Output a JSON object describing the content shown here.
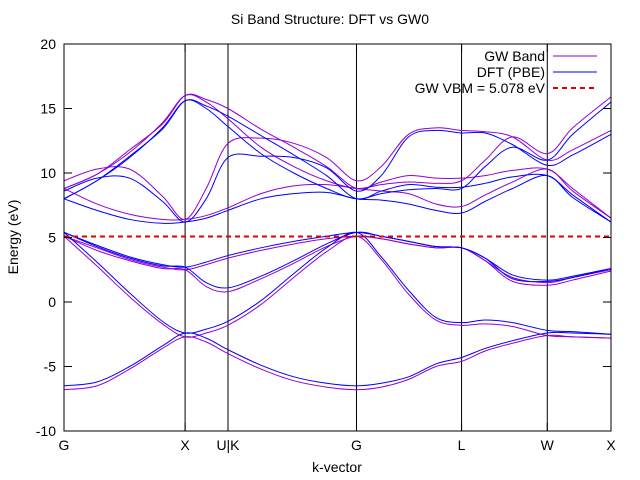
{
  "chart_data": {
    "type": "line",
    "title": "Si Band Structure: DFT vs GW0",
    "xlabel": "k-vector",
    "ylabel": "Energy (eV)",
    "xlim": [
      0,
      1
    ],
    "ylim": [
      -10,
      20
    ],
    "y_ticks": [
      -10,
      -5,
      0,
      5,
      10,
      15,
      20
    ],
    "k_points": [
      {
        "label": "G",
        "x": 0.0
      },
      {
        "label": "X",
        "x": 0.2214
      },
      {
        "label": "U|K",
        "x": 0.2998
      },
      {
        "label": "G",
        "x": 0.5347
      },
      {
        "label": "L",
        "x": 0.7268
      },
      {
        "label": "W",
        "x": 0.8835
      },
      {
        "label": "X",
        "x": 1.0
      }
    ],
    "legend_position": "top-right",
    "legend": [
      {
        "label": "GW Band",
        "color": "#9400d3",
        "dash": "solid"
      },
      {
        "label": "DFT (PBE)",
        "color": "#0000ff",
        "dash": "solid"
      },
      {
        "label": "GW VBM = 5.078 eV",
        "color": "#dd0000",
        "dash": "dashed"
      }
    ],
    "reference_line": {
      "y": 5.078,
      "color": "#dd0000"
    },
    "series": [
      {
        "group": "GW Band",
        "color": "#9400d3",
        "x": [
          0,
          0.06,
          0.12,
          0.18,
          0.2214,
          0.26,
          0.2998,
          0.36,
          0.42,
          0.48,
          0.5347,
          0.58,
          0.63,
          0.68,
          0.7268,
          0.77,
          0.82,
          0.8835,
          0.93,
          1.0
        ],
        "bands": [
          [
            -6.8,
            -6.5,
            -5.2,
            -3.6,
            -2.7,
            -3.1,
            -4.0,
            -5.2,
            -6.1,
            -6.6,
            -6.8,
            -6.6,
            -6.0,
            -5.0,
            -4.6,
            -3.8,
            -3.2,
            -2.6,
            -2.7,
            -2.8
          ],
          [
            5.1,
            2.8,
            0.4,
            -1.7,
            -2.7,
            -2.4,
            -1.8,
            -0.2,
            1.9,
            3.9,
            5.1,
            3.3,
            0.6,
            -1.4,
            -1.8,
            -1.7,
            -1.9,
            -2.6,
            -2.7,
            -2.8
          ],
          [
            5.1,
            4.0,
            3.2,
            2.6,
            2.5,
            1.2,
            0.8,
            1.8,
            3.0,
            4.3,
            5.1,
            4.9,
            4.5,
            4.2,
            4.2,
            3.2,
            1.6,
            1.3,
            1.7,
            2.4
          ],
          [
            5.1,
            4.2,
            3.3,
            2.7,
            2.5,
            2.9,
            3.4,
            4.0,
            4.5,
            4.9,
            5.1,
            4.9,
            4.5,
            4.2,
            4.2,
            3.2,
            1.9,
            1.5,
            1.9,
            2.5
          ],
          [
            8.8,
            7.6,
            6.8,
            6.4,
            6.4,
            6.7,
            7.3,
            8.4,
            9.0,
            9.1,
            8.8,
            8.6,
            8.4,
            7.6,
            7.4,
            8.3,
            9.3,
            10.3,
            8.6,
            6.5
          ],
          [
            8.8,
            9.9,
            11.8,
            13.8,
            16.0,
            15.7,
            15.0,
            13.4,
            12.0,
            10.5,
            8.8,
            9.3,
            9.8,
            9.6,
            9.6,
            9.8,
            10.2,
            10.3,
            8.8,
            6.5
          ],
          [
            9.4,
            10.3,
            10.3,
            8.2,
            6.4,
            8.8,
            12.3,
            12.7,
            12.3,
            11.2,
            9.4,
            10.5,
            13.0,
            13.5,
            13.3,
            13.2,
            12.8,
            11.0,
            11.8,
            13.3
          ],
          [
            8.8,
            9.9,
            11.6,
            13.9,
            16.0,
            15.5,
            14.2,
            12.0,
            10.5,
            9.4,
            8.8,
            9.1,
            9.3,
            9.2,
            9.4,
            11.0,
            12.8,
            11.5,
            13.5,
            15.9
          ]
        ]
      },
      {
        "group": "DFT (PBE)",
        "color": "#0000ff",
        "x": [
          0,
          0.06,
          0.12,
          0.18,
          0.2214,
          0.26,
          0.2998,
          0.36,
          0.42,
          0.48,
          0.5347,
          0.58,
          0.63,
          0.68,
          0.7268,
          0.77,
          0.82,
          0.8835,
          0.93,
          1.0
        ],
        "bands": [
          [
            -6.5,
            -6.2,
            -5.0,
            -3.4,
            -2.4,
            -2.8,
            -3.7,
            -4.9,
            -5.8,
            -6.3,
            -6.5,
            -6.3,
            -5.8,
            -4.8,
            -4.3,
            -3.6,
            -3.0,
            -2.4,
            -2.4,
            -2.5
          ],
          [
            5.4,
            3.1,
            0.7,
            -1.5,
            -2.4,
            -2.1,
            -1.5,
            0.1,
            2.2,
            4.2,
            5.4,
            3.5,
            0.9,
            -1.2,
            -1.6,
            -1.4,
            -1.6,
            -2.2,
            -2.3,
            -2.5
          ],
          [
            5.4,
            4.3,
            3.4,
            2.8,
            2.7,
            1.5,
            1.1,
            2.0,
            3.2,
            4.5,
            5.4,
            5.1,
            4.7,
            4.3,
            4.2,
            3.4,
            1.8,
            1.6,
            1.9,
            2.6
          ],
          [
            5.4,
            4.4,
            3.5,
            2.9,
            2.7,
            3.1,
            3.6,
            4.2,
            4.7,
            5.1,
            5.4,
            5.1,
            4.7,
            4.3,
            4.2,
            3.4,
            2.1,
            1.7,
            2.0,
            2.6
          ],
          [
            8.0,
            7.1,
            6.4,
            6.1,
            6.2,
            6.5,
            7.1,
            8.0,
            8.4,
            8.5,
            8.0,
            7.9,
            7.6,
            7.1,
            6.9,
            7.8,
            8.8,
            9.8,
            8.1,
            6.2
          ],
          [
            8.0,
            9.4,
            11.3,
            13.4,
            15.6,
            15.2,
            14.4,
            12.9,
            11.4,
            9.8,
            8.0,
            8.6,
            9.1,
            8.9,
            8.9,
            9.2,
            9.7,
            9.8,
            8.3,
            6.2
          ],
          [
            8.6,
            9.6,
            9.6,
            7.8,
            6.2,
            8.0,
            11.2,
            11.3,
            11.2,
            10.4,
            8.6,
            9.8,
            12.8,
            13.3,
            13.1,
            13.1,
            12.2,
            10.6,
            11.4,
            13.0
          ],
          [
            8.0,
            9.4,
            11.2,
            13.5,
            15.6,
            15.0,
            13.6,
            11.5,
            10.0,
            8.8,
            8.0,
            8.4,
            8.7,
            8.8,
            8.8,
            10.5,
            12.0,
            11.0,
            13.0,
            15.5
          ]
        ]
      }
    ]
  }
}
